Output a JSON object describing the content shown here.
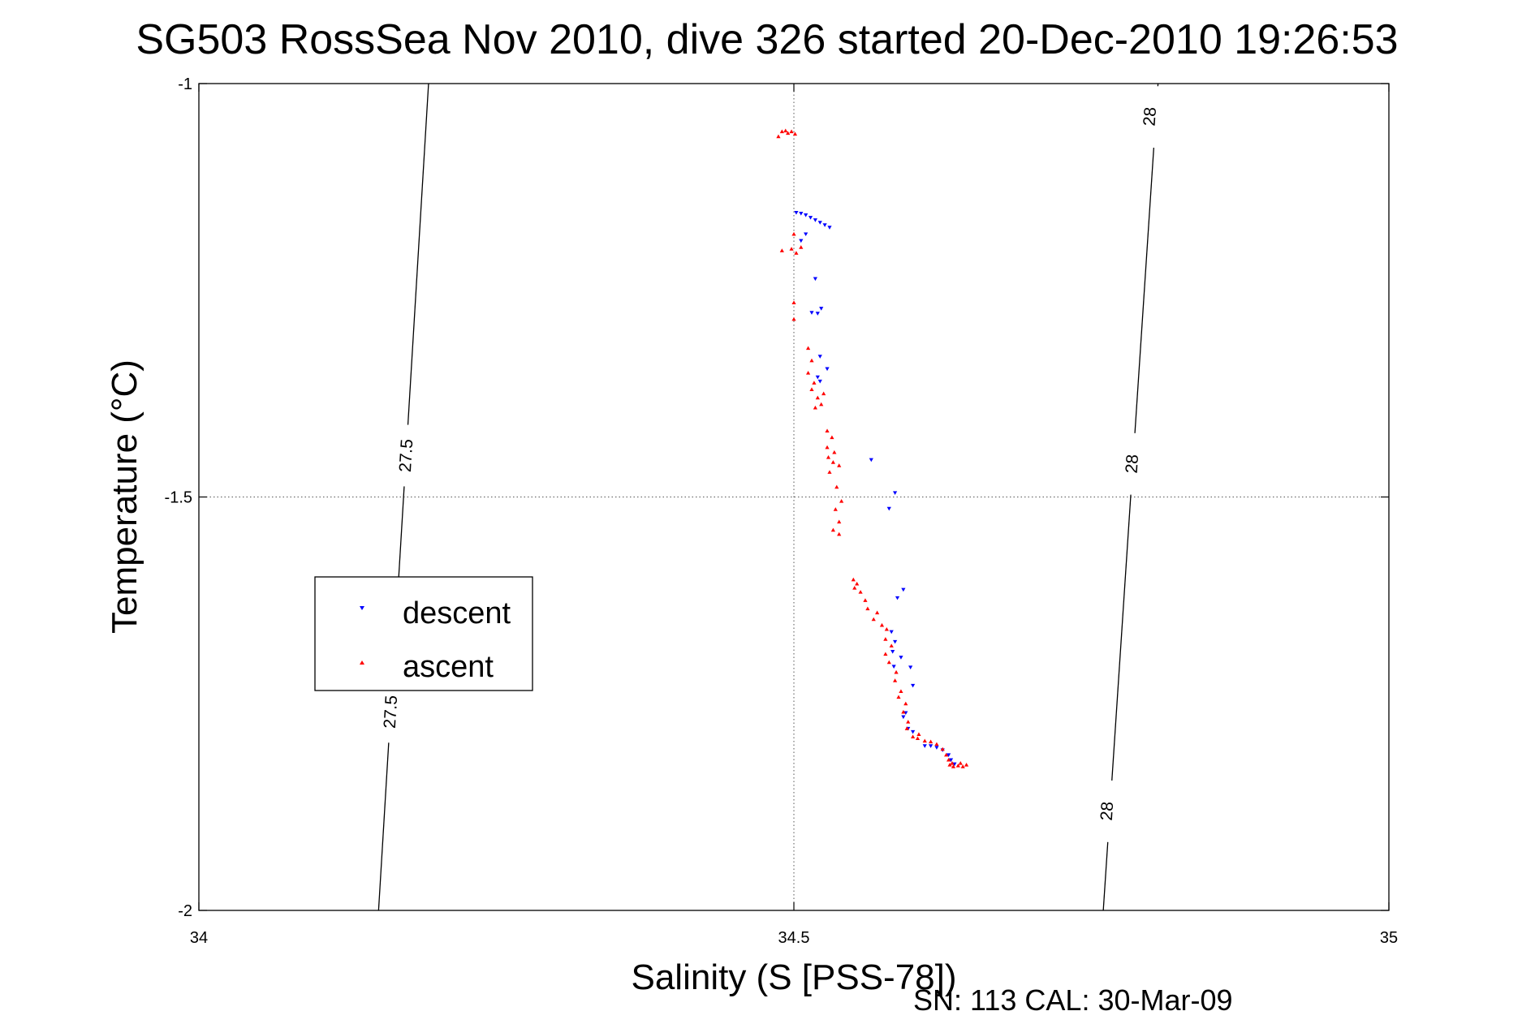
{
  "chart_data": {
    "type": "scatter",
    "title": "SG503 RossSea Nov 2010, dive 326 started 20-Dec-2010 19:26:53",
    "xlabel": "Salinity (S [PSS-78])",
    "ylabel": "Temperature (°C)",
    "xlim": [
      34,
      35
    ],
    "ylim": [
      -2,
      -1
    ],
    "xticks": [
      34,
      34.5,
      35
    ],
    "yticks": [
      -2,
      -1.5,
      -1
    ],
    "xtick_labels": [
      "34",
      "34.5",
      "35"
    ],
    "ytick_labels": [
      "-2",
      "-1.5",
      "-1"
    ],
    "grid": true,
    "legend_position": "left",
    "footer": "SN: 113  CAL: 30-Mar-09",
    "density_contours": [
      {
        "label": "27.5",
        "points": [
          [
            34.193,
            -1.0
          ],
          [
            34.151,
            -2.0
          ]
        ],
        "label_positions": [
          [
            34.175,
            -1.45
          ],
          [
            34.162,
            -1.76
          ]
        ]
      },
      {
        "label": "28",
        "points": [
          [
            34.806,
            -1.0
          ],
          [
            34.76,
            -2.0
          ]
        ],
        "label_positions": [
          [
            34.8,
            -1.04
          ],
          [
            34.785,
            -1.46
          ],
          [
            34.764,
            -1.88
          ]
        ]
      }
    ],
    "series": [
      {
        "name": "descent",
        "color": "#0000ff",
        "marker": "triangle-down",
        "points": [
          [
            34.502,
            -1.156
          ],
          [
            34.506,
            -1.157
          ],
          [
            34.51,
            -1.159
          ],
          [
            34.514,
            -1.162
          ],
          [
            34.518,
            -1.165
          ],
          [
            34.522,
            -1.168
          ],
          [
            34.526,
            -1.171
          ],
          [
            34.53,
            -1.174
          ],
          [
            34.51,
            -1.182
          ],
          [
            34.506,
            -1.19
          ],
          [
            34.518,
            -1.236
          ],
          [
            34.515,
            -1.277
          ],
          [
            34.52,
            -1.278
          ],
          [
            34.523,
            -1.272
          ],
          [
            34.522,
            -1.33
          ],
          [
            34.528,
            -1.345
          ],
          [
            34.52,
            -1.355
          ],
          [
            34.522,
            -1.36
          ],
          [
            34.585,
            -1.495
          ],
          [
            34.58,
            -1.514
          ],
          [
            34.565,
            -1.455
          ],
          [
            34.592,
            -1.612
          ],
          [
            34.587,
            -1.622
          ],
          [
            34.582,
            -1.663
          ],
          [
            34.585,
            -1.675
          ],
          [
            34.583,
            -1.687
          ],
          [
            34.59,
            -1.694
          ],
          [
            34.584,
            -1.705
          ],
          [
            34.598,
            -1.706
          ],
          [
            34.6,
            -1.728
          ],
          [
            34.594,
            -1.761
          ],
          [
            34.592,
            -1.766
          ],
          [
            34.596,
            -1.78
          ],
          [
            34.6,
            -1.784
          ],
          [
            34.61,
            -1.801
          ],
          [
            34.615,
            -1.801
          ],
          [
            34.62,
            -1.803
          ],
          [
            34.625,
            -1.806
          ],
          [
            34.63,
            -1.812
          ],
          [
            34.632,
            -1.818
          ],
          [
            34.635,
            -1.823
          ]
        ]
      },
      {
        "name": "ascent",
        "color": "#ff0000",
        "marker": "triangle-up",
        "points": [
          [
            34.487,
            -1.064
          ],
          [
            34.49,
            -1.058
          ],
          [
            34.493,
            -1.057
          ],
          [
            34.495,
            -1.06
          ],
          [
            34.498,
            -1.058
          ],
          [
            34.501,
            -1.061
          ],
          [
            34.5,
            -1.182
          ],
          [
            34.498,
            -1.2
          ],
          [
            34.49,
            -1.202
          ],
          [
            34.502,
            -1.205
          ],
          [
            34.506,
            -1.198
          ],
          [
            34.5,
            -1.265
          ],
          [
            34.5,
            -1.285
          ],
          [
            34.512,
            -1.32
          ],
          [
            34.515,
            -1.335
          ],
          [
            34.512,
            -1.35
          ],
          [
            34.517,
            -1.362
          ],
          [
            34.515,
            -1.37
          ],
          [
            34.52,
            -1.38
          ],
          [
            34.523,
            -1.388
          ],
          [
            34.518,
            -1.392
          ],
          [
            34.525,
            -1.375
          ],
          [
            34.528,
            -1.42
          ],
          [
            34.532,
            -1.428
          ],
          [
            34.528,
            -1.44
          ],
          [
            34.534,
            -1.446
          ],
          [
            34.529,
            -1.452
          ],
          [
            34.533,
            -1.458
          ],
          [
            34.538,
            -1.462
          ],
          [
            34.53,
            -1.47
          ],
          [
            34.536,
            -1.488
          ],
          [
            34.54,
            -1.505
          ],
          [
            34.535,
            -1.515
          ],
          [
            34.538,
            -1.53
          ],
          [
            34.533,
            -1.54
          ],
          [
            34.538,
            -1.545
          ],
          [
            34.55,
            -1.6
          ],
          [
            34.553,
            -1.605
          ],
          [
            34.551,
            -1.61
          ],
          [
            34.556,
            -1.615
          ],
          [
            34.56,
            -1.625
          ],
          [
            34.562,
            -1.635
          ],
          [
            34.57,
            -1.64
          ],
          [
            34.567,
            -1.648
          ],
          [
            34.574,
            -1.655
          ],
          [
            34.578,
            -1.66
          ],
          [
            34.577,
            -1.672
          ],
          [
            34.582,
            -1.68
          ],
          [
            34.577,
            -1.69
          ],
          [
            34.58,
            -1.7
          ],
          [
            34.586,
            -1.712
          ],
          [
            34.585,
            -1.722
          ],
          [
            34.59,
            -1.735
          ],
          [
            34.588,
            -1.742
          ],
          [
            34.594,
            -1.75
          ],
          [
            34.592,
            -1.76
          ],
          [
            34.596,
            -1.772
          ],
          [
            34.595,
            -1.78
          ],
          [
            34.6,
            -1.79
          ],
          [
            34.604,
            -1.792
          ],
          [
            34.605,
            -1.787
          ],
          [
            34.61,
            -1.795
          ],
          [
            34.615,
            -1.796
          ],
          [
            34.62,
            -1.799
          ],
          [
            34.625,
            -1.805
          ],
          [
            34.628,
            -1.812
          ],
          [
            34.63,
            -1.818
          ],
          [
            34.633,
            -1.822
          ],
          [
            34.638,
            -1.825
          ],
          [
            34.64,
            -1.822
          ],
          [
            34.645,
            -1.824
          ],
          [
            34.642,
            -1.826
          ],
          [
            34.634,
            -1.826
          ],
          [
            34.631,
            -1.824
          ]
        ]
      }
    ]
  }
}
